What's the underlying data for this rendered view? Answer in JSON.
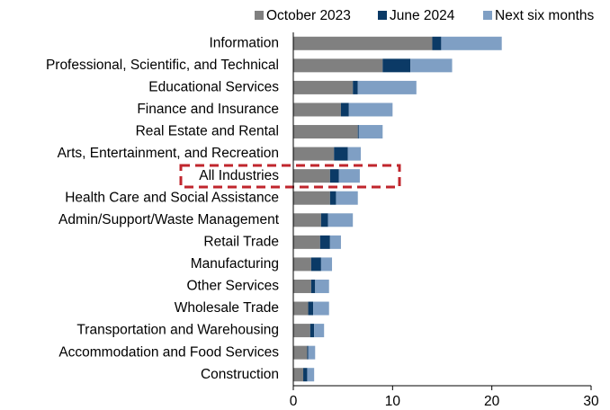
{
  "chart_data": {
    "type": "stacked_barh",
    "categories": [
      "Information",
      "Professional, Scientific, and Technical",
      "Educational Services",
      "Finance and Insurance",
      "Real Estate and Rental",
      "Arts, Entertainment, and Recreation",
      "All Industries",
      "Health Care and Social Assistance",
      "Admin/Support/Waste Management",
      "Retail Trade",
      "Manufacturing",
      "Other Services",
      "Wholesale Trade",
      "Transportation and Warehousing",
      "Accommodation and Food Services",
      "Construction"
    ],
    "series": [
      {
        "name": "October 2023",
        "color": "#808080",
        "values": [
          14.0,
          9.0,
          6.0,
          4.8,
          6.5,
          4.1,
          3.7,
          3.7,
          2.8,
          2.7,
          1.8,
          1.8,
          1.5,
          1.7,
          1.4,
          1.0
        ]
      },
      {
        "name": "June 2024",
        "color": "#0b3a66",
        "values": [
          0.9,
          2.8,
          0.5,
          0.8,
          0.1,
          1.4,
          0.9,
          0.6,
          0.7,
          1.0,
          1.0,
          0.4,
          0.5,
          0.4,
          0.1,
          0.4
        ]
      },
      {
        "name": "Next six months",
        "color": "#7f9fc4",
        "values": [
          6.1,
          4.2,
          5.9,
          4.4,
          2.4,
          1.3,
          2.1,
          2.2,
          2.5,
          1.1,
          1.1,
          1.4,
          1.6,
          1.0,
          0.7,
          0.7
        ]
      }
    ],
    "xlim": [
      0,
      30
    ],
    "xticks": [
      0,
      10,
      20,
      30
    ],
    "legend": "top"
  }
}
